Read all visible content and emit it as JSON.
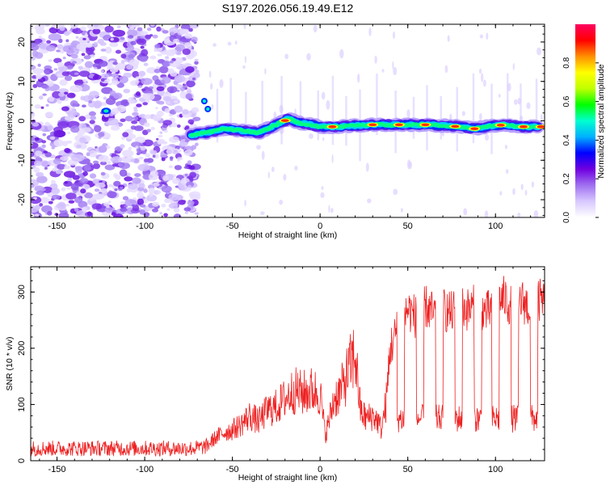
{
  "title": "S197.2026.056.19.49.E12",
  "chart_data": [
    {
      "type": "heatmap",
      "name": "spectrogram",
      "xlabel": "Height of straight line (km)",
      "ylabel": "Frequency (Hz)",
      "xlim": [
        -165,
        128
      ],
      "ylim": [
        -24.5,
        24.5
      ],
      "xticks": [
        -150,
        -100,
        -50,
        0,
        50,
        100
      ],
      "yticks": [
        -20,
        -10,
        0,
        10,
        20
      ],
      "colorbar": {
        "label": "Normalized spectral amplitude",
        "range": [
          0,
          1
        ],
        "ticks": [
          "0.0",
          "0.2",
          "0.4",
          "0.6",
          "0.8"
        ],
        "colors": [
          "#ffffff",
          "#d8c8ff",
          "#a070f0",
          "#7000e0",
          "#0000ff",
          "#00b0ff",
          "#00ffd0",
          "#00ff00",
          "#c0ff00",
          "#ffff00",
          "#ff9000",
          "#ff0000",
          "#ff0060"
        ]
      },
      "noise_region_x": [
        -165,
        -73
      ],
      "signal_track": {
        "x": [
          -73,
          -65,
          -55,
          -45,
          -35,
          -25,
          -18,
          -12,
          -5,
          0,
          10,
          20,
          30,
          40,
          50,
          60,
          70,
          80,
          88,
          95,
          105,
          115,
          125
        ],
        "freq": [
          -3.5,
          -3,
          -2,
          -2.5,
          -3,
          -1,
          0.5,
          -0.5,
          -1,
          -1.5,
          -1.5,
          -1.2,
          -1,
          -1,
          -1,
          -1,
          -1.2,
          -1.5,
          -2,
          -1.5,
          -1,
          -1.5,
          -1.5
        ]
      }
    },
    {
      "type": "line",
      "name": "snr",
      "xlabel": "Height of straight line (km)",
      "ylabel": "SNR (10 * v/v)",
      "xlim": [
        -165,
        128
      ],
      "ylim": [
        0,
        345
      ],
      "xticks": [
        -150,
        -100,
        -50,
        0,
        50,
        100
      ],
      "yticks": [
        0,
        100,
        200,
        300
      ],
      "color": "#ee2020",
      "series": [
        {
          "name": "SNR envelope",
          "x": [
            -165,
            -150,
            -130,
            -110,
            -90,
            -72,
            -65,
            -60,
            -55,
            -50,
            -45,
            -40,
            -35,
            -30,
            -25,
            -20,
            -15,
            -10,
            -5,
            0,
            3,
            5,
            8,
            12,
            15,
            18,
            20,
            23,
            26,
            30,
            33,
            35,
            38,
            40,
            45,
            50,
            55,
            60,
            65,
            70,
            75,
            80,
            85,
            90,
            95,
            100,
            105,
            110,
            115,
            120,
            125,
            128
          ],
          "y": [
            22,
            22,
            22,
            22,
            22,
            22,
            25,
            40,
            50,
            55,
            65,
            80,
            70,
            90,
            95,
            110,
            125,
            120,
            125,
            120,
            45,
            70,
            110,
            125,
            150,
            175,
            190,
            90,
            75,
            80,
            70,
            55,
            110,
            200,
            240,
            270,
            255,
            275,
            260,
            270,
            262,
            275,
            268,
            280,
            262,
            280,
            290,
            270,
            285,
            270,
            285,
            280
          ]
        }
      ]
    }
  ]
}
